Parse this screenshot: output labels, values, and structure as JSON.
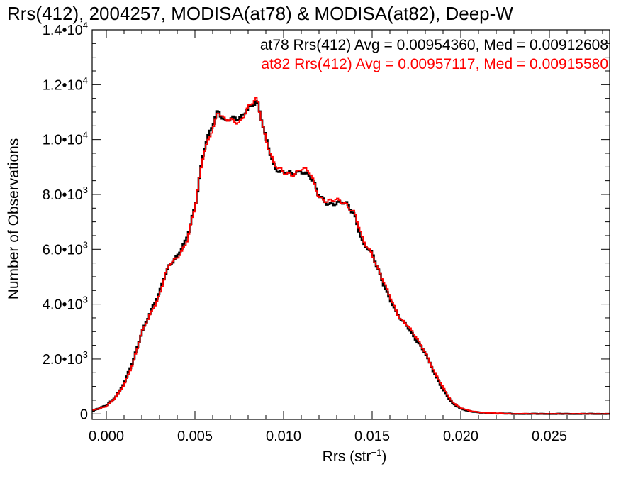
{
  "chart_data": {
    "type": "histogram",
    "title": "Rrs(412), 2004257, MODISA(at78) & MODISA(at82), Deep-W",
    "xlabel": "Rrs (str",
    "xlabel_exp": "−1",
    "xlabel_close": ")",
    "ylabel": "Number of Observations",
    "xlim": [
      -0.0008,
      0.0284
    ],
    "ylim": [
      -200,
      14000
    ],
    "x_ticks": [
      {
        "value": 0.0,
        "label": "0.000"
      },
      {
        "value": 0.005,
        "label": "0.005"
      },
      {
        "value": 0.01,
        "label": "0.010"
      },
      {
        "value": 0.015,
        "label": "0.015"
      },
      {
        "value": 0.02,
        "label": "0.020"
      },
      {
        "value": 0.025,
        "label": "0.025"
      }
    ],
    "y_ticks": [
      {
        "value": 0,
        "mant": "0",
        "exp": ""
      },
      {
        "value": 2000,
        "mant": "2.0•10",
        "exp": "3"
      },
      {
        "value": 4000,
        "mant": "4.0•10",
        "exp": "3"
      },
      {
        "value": 6000,
        "mant": "6.0•10",
        "exp": "3"
      },
      {
        "value": 8000,
        "mant": "8.0•10",
        "exp": "3"
      },
      {
        "value": 10000,
        "mant": "1.0•10",
        "exp": "4"
      },
      {
        "value": 12000,
        "mant": "1.2•10",
        "exp": "4"
      },
      {
        "value": 14000,
        "mant": "1.4•10",
        "exp": "4"
      }
    ],
    "grid": false,
    "legend_position": "top-right",
    "series": [
      {
        "name": "at78",
        "color": "#000000",
        "annotation": "at78 Rrs(412) Avg = 0.00954360, Med = 0.00912608",
        "points": [
          [
            -0.0008,
            100
          ],
          [
            0.0,
            300
          ],
          [
            0.0005,
            600
          ],
          [
            0.001,
            1100
          ],
          [
            0.0015,
            1900
          ],
          [
            0.002,
            3000
          ],
          [
            0.0025,
            3700
          ],
          [
            0.003,
            4400
          ],
          [
            0.0033,
            5100
          ],
          [
            0.0036,
            5500
          ],
          [
            0.004,
            5700
          ],
          [
            0.0045,
            6300
          ],
          [
            0.005,
            7600
          ],
          [
            0.0055,
            9600
          ],
          [
            0.006,
            10500
          ],
          [
            0.0063,
            11100
          ],
          [
            0.0067,
            10700
          ],
          [
            0.007,
            10750
          ],
          [
            0.0075,
            10700
          ],
          [
            0.008,
            11200
          ],
          [
            0.0085,
            11400
          ],
          [
            0.009,
            10000
          ],
          [
            0.0095,
            9000
          ],
          [
            0.01,
            8800
          ],
          [
            0.0105,
            8700
          ],
          [
            0.011,
            8900
          ],
          [
            0.0115,
            8700
          ],
          [
            0.012,
            7900
          ],
          [
            0.0125,
            7700
          ],
          [
            0.013,
            7700
          ],
          [
            0.0135,
            7650
          ],
          [
            0.014,
            7300
          ],
          [
            0.0145,
            6200
          ],
          [
            0.015,
            5800
          ],
          [
            0.0155,
            5000
          ],
          [
            0.016,
            4200
          ],
          [
            0.0165,
            3500
          ],
          [
            0.017,
            3200
          ],
          [
            0.0175,
            2700
          ],
          [
            0.018,
            2200
          ],
          [
            0.0185,
            1500
          ],
          [
            0.019,
            900
          ],
          [
            0.0195,
            400
          ],
          [
            0.02,
            200
          ],
          [
            0.0205,
            100
          ],
          [
            0.021,
            50
          ],
          [
            0.022,
            20
          ],
          [
            0.023,
            0
          ],
          [
            0.025,
            0
          ],
          [
            0.0284,
            0
          ]
        ]
      },
      {
        "name": "at82",
        "color": "#ff0000",
        "annotation": "at82 Rrs(412) Avg = 0.00957117, Med = 0.00915580",
        "points": [
          [
            -0.0008,
            120
          ],
          [
            0.0,
            280
          ],
          [
            0.0005,
            580
          ],
          [
            0.001,
            1050
          ],
          [
            0.0015,
            1850
          ],
          [
            0.002,
            2950
          ],
          [
            0.0025,
            3650
          ],
          [
            0.003,
            4350
          ],
          [
            0.0033,
            5050
          ],
          [
            0.0036,
            5450
          ],
          [
            0.004,
            5650
          ],
          [
            0.0045,
            6250
          ],
          [
            0.005,
            7500
          ],
          [
            0.0055,
            9500
          ],
          [
            0.006,
            10450
          ],
          [
            0.0063,
            11050
          ],
          [
            0.0067,
            10650
          ],
          [
            0.007,
            10700
          ],
          [
            0.0075,
            10650
          ],
          [
            0.008,
            11150
          ],
          [
            0.0085,
            11450
          ],
          [
            0.009,
            10050
          ],
          [
            0.0095,
            9050
          ],
          [
            0.01,
            8750
          ],
          [
            0.0105,
            8750
          ],
          [
            0.011,
            8950
          ],
          [
            0.0115,
            8750
          ],
          [
            0.012,
            7950
          ],
          [
            0.0125,
            7750
          ],
          [
            0.013,
            7750
          ],
          [
            0.0135,
            7700
          ],
          [
            0.014,
            7350
          ],
          [
            0.0145,
            6250
          ],
          [
            0.015,
            5850
          ],
          [
            0.0155,
            5050
          ],
          [
            0.016,
            4250
          ],
          [
            0.0165,
            3550
          ],
          [
            0.017,
            3250
          ],
          [
            0.0175,
            2750
          ],
          [
            0.018,
            2250
          ],
          [
            0.0185,
            1550
          ],
          [
            0.019,
            950
          ],
          [
            0.0195,
            450
          ],
          [
            0.02,
            220
          ],
          [
            0.0205,
            110
          ],
          [
            0.021,
            60
          ],
          [
            0.022,
            25
          ],
          [
            0.023,
            5
          ],
          [
            0.025,
            0
          ],
          [
            0.0284,
            0
          ]
        ]
      }
    ]
  }
}
